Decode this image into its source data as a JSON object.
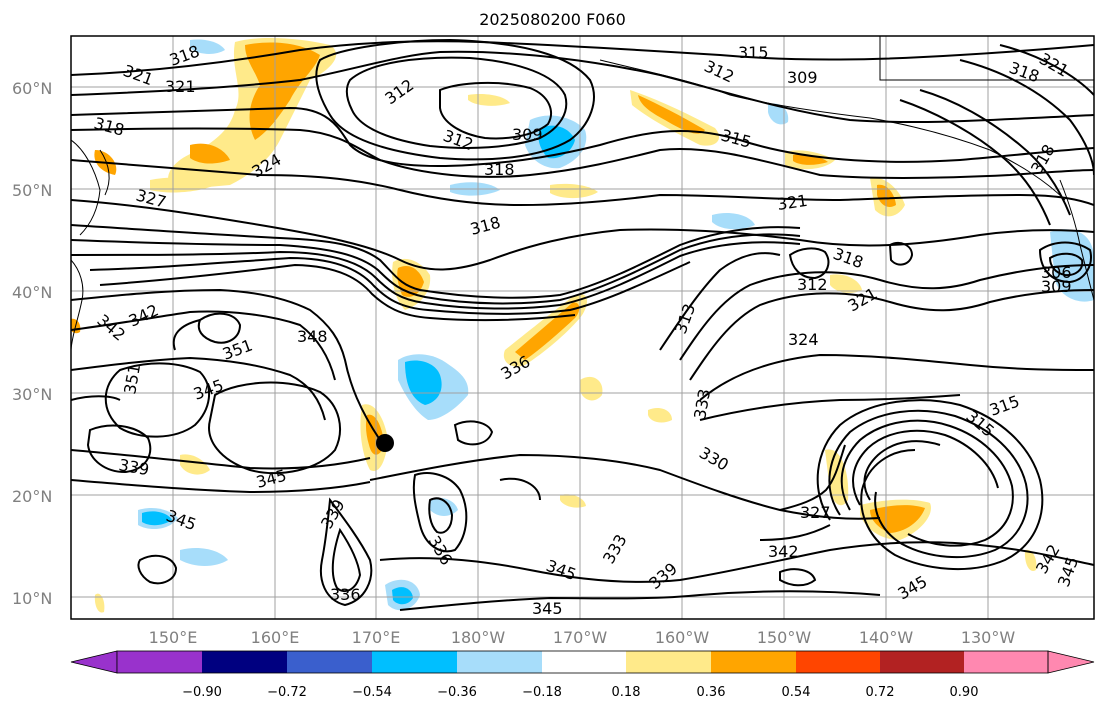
{
  "title": "2025080200 F060",
  "lat_labels": [
    "60°N",
    "50°N",
    "40°N",
    "30°N",
    "20°N",
    "10°N"
  ],
  "lon_labels": [
    "150°E",
    "160°E",
    "170°E",
    "180°W",
    "170°W",
    "160°W",
    "150°W",
    "140°W",
    "130°W"
  ],
  "colorbar": {
    "tick_labels": [
      "−0.90",
      "−0.72",
      "−0.54",
      "−0.36",
      "−0.18",
      "0.18",
      "0.36",
      "0.54",
      "0.72",
      "0.90"
    ],
    "colors": [
      "#9932cc",
      "#000080",
      "#3a5fcd",
      "#00bfff",
      "#a7ddfa",
      "#ffffff",
      "#ffea8a",
      "#ffa500",
      "#ff4500",
      "#b22222",
      "#ff88b0"
    ]
  },
  "contour_labels": [
    "318",
    "321",
    "321",
    "312",
    "315",
    "312",
    "309",
    "318",
    "318",
    "309",
    "312",
    "315",
    "318",
    "318",
    "321",
    "324",
    "327",
    "318",
    "321",
    "318",
    "312",
    "321",
    "306",
    "309",
    "342",
    "342",
    "351",
    "348",
    "336",
    "324",
    "313",
    "351",
    "345",
    "339",
    "345",
    "345",
    "339",
    "336",
    "330",
    "333",
    "327",
    "342",
    "333",
    "339",
    "345",
    "345",
    "336",
    "345",
    "342",
    "345",
    "315",
    "315"
  ],
  "storm_marker": "tropical-storm-position"
}
